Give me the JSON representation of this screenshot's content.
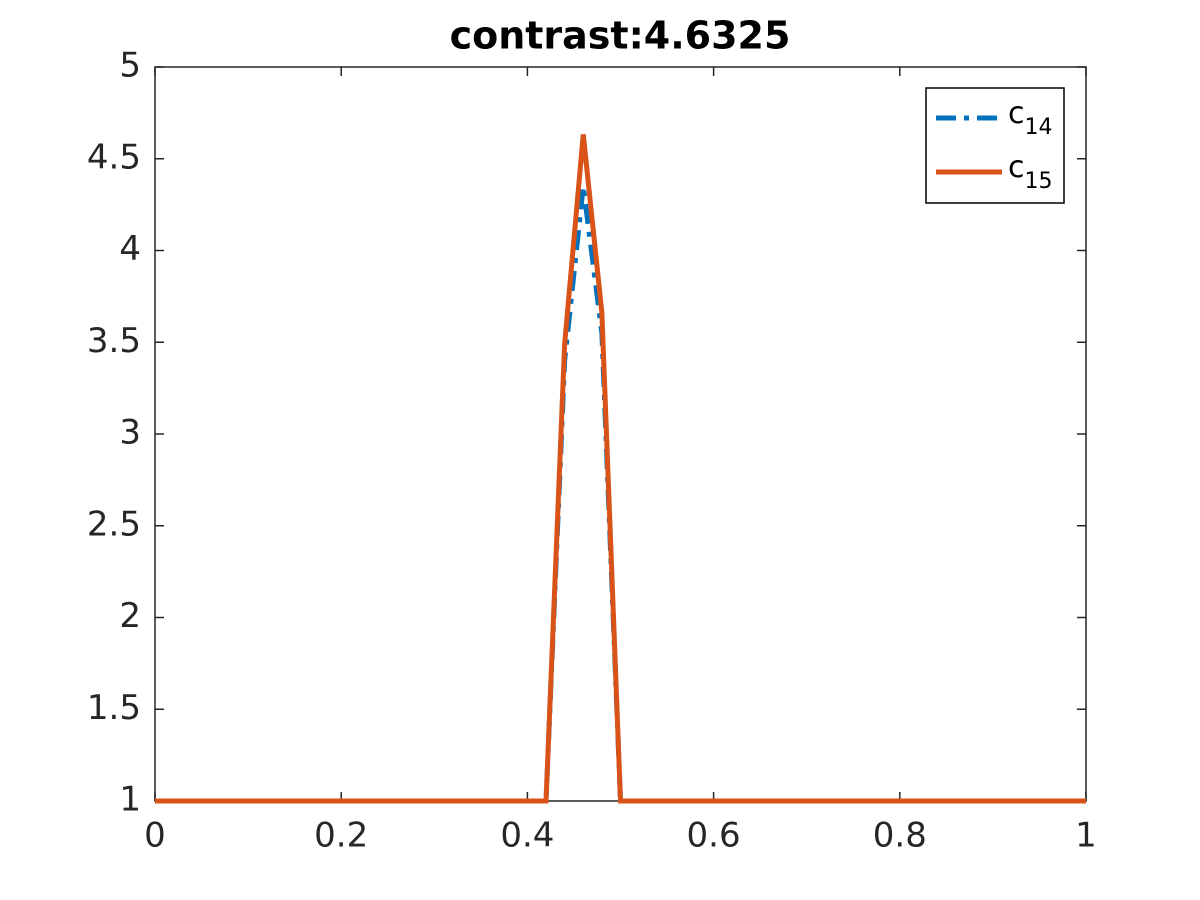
{
  "chart_data": {
    "type": "line",
    "title": "contrast:4.6325",
    "x": [
      0,
      0.42,
      0.44,
      0.46,
      0.48,
      0.5,
      1
    ],
    "series": [
      {
        "name": "c14",
        "color": "#0072BD",
        "style": "dash-dot",
        "values": [
          1,
          1,
          3.4,
          4.35,
          3.55,
          1,
          1
        ]
      },
      {
        "name": "c15",
        "color": "#D95319",
        "style": "solid",
        "values": [
          1,
          1,
          3.49,
          4.6325,
          3.66,
          1,
          1
        ]
      }
    ],
    "xlim": [
      0,
      1
    ],
    "xticks": [
      0,
      0.2,
      0.4,
      0.6,
      0.8,
      1
    ],
    "ylim": [
      1,
      5
    ],
    "yticks": [
      1,
      1.5,
      2,
      2.5,
      3,
      3.5,
      4,
      4.5,
      5
    ],
    "grid": false,
    "legend": "northeast"
  }
}
